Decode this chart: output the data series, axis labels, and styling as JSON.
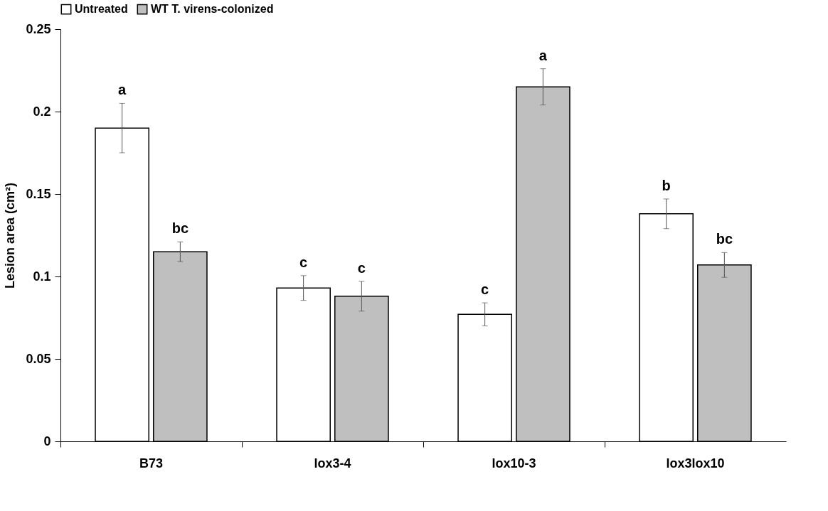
{
  "chart_data": {
    "type": "bar",
    "ylabel": "Lesion area (cm²)",
    "categories": [
      "B73",
      "lox3-4",
      "lox10-3",
      "lox3lox10"
    ],
    "series": [
      {
        "name": "Untreated",
        "color": "#ffffff",
        "values": [
          0.19,
          0.093,
          0.077,
          0.138
        ],
        "errors": [
          0.015,
          0.0075,
          0.007,
          0.009
        ],
        "value_labels": [
          "a",
          "c",
          "c",
          "b"
        ]
      },
      {
        "name": "WT T. virens-colonized",
        "color": "#bfbfbf",
        "values": [
          0.115,
          0.088,
          0.215,
          0.107
        ],
        "errors": [
          0.006,
          0.009,
          0.011,
          0.0075
        ],
        "value_labels": [
          "bc",
          "c",
          "a",
          "bc"
        ]
      }
    ],
    "ylim": [
      0,
      0.25
    ],
    "yticks": [
      0,
      0.05,
      0.1,
      0.15,
      0.2,
      0.25
    ],
    "grid": false,
    "legend": "top"
  }
}
